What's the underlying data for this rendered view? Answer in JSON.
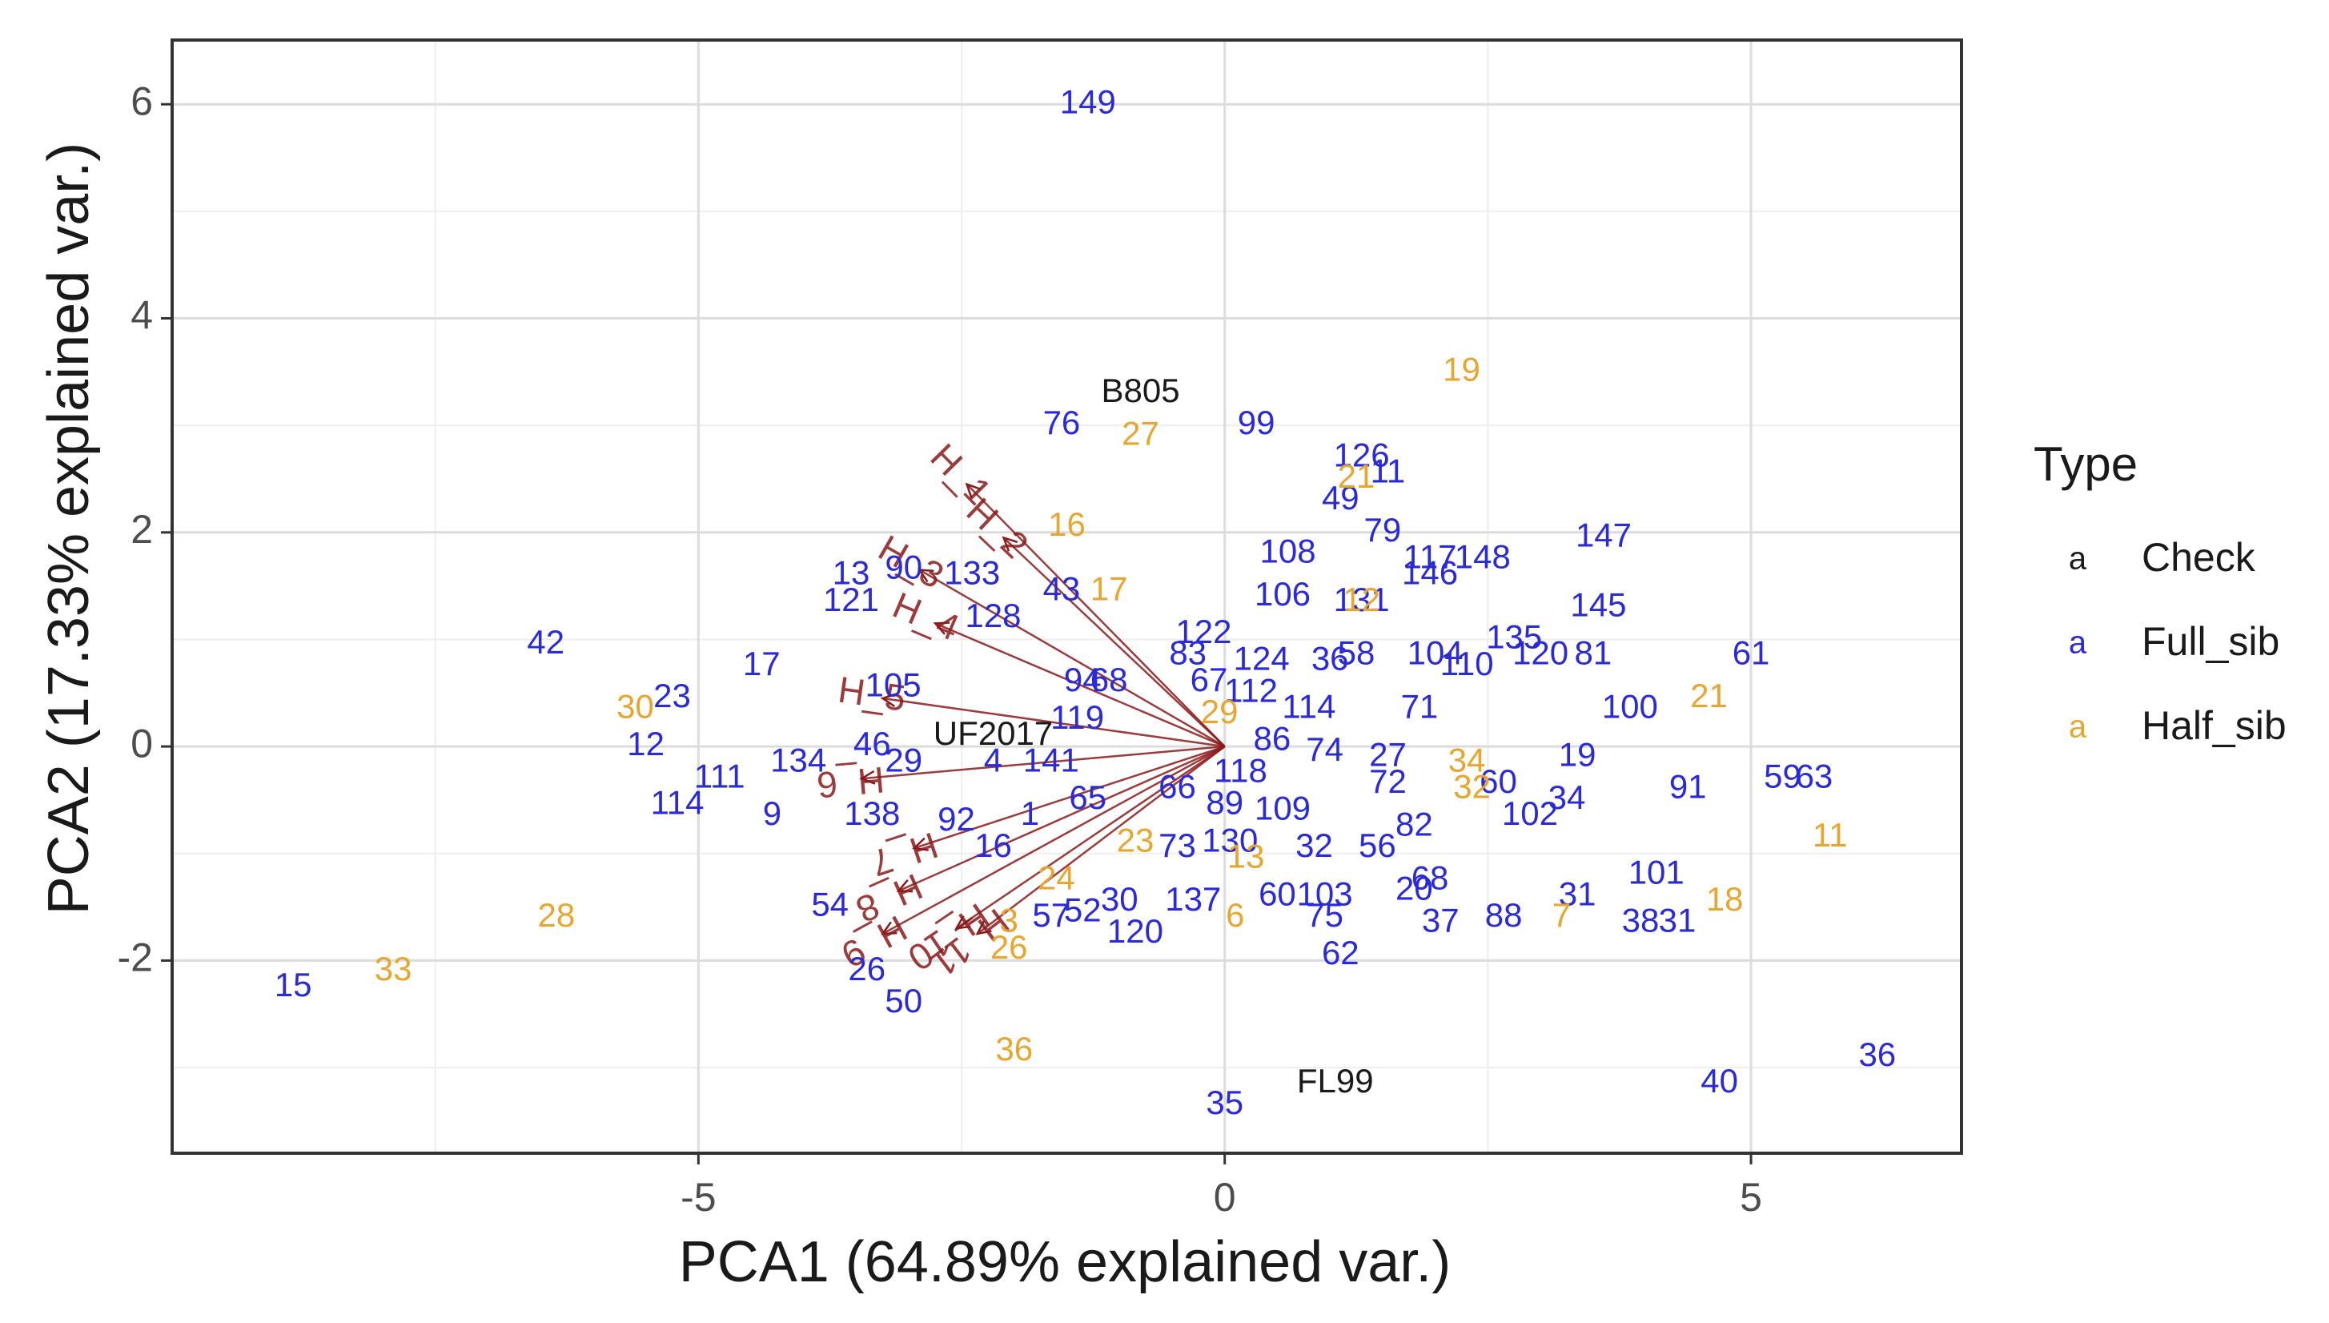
{
  "chart_data": {
    "type": "scatter",
    "title": "",
    "xlabel": "PCA1 (64.89% explained var.)",
    "ylabel": "PCA2 (17.33% explained var.)",
    "xlim": [
      -10,
      7
    ],
    "ylim": [
      -3.8,
      6.6
    ],
    "x_ticks": [
      -5,
      0,
      5
    ],
    "x_tick_labels": [
      "-5",
      "0",
      "5"
    ],
    "y_ticks": [
      -2,
      0,
      2,
      4,
      6
    ],
    "y_tick_labels": [
      "-2",
      "0",
      "2",
      "4",
      "6"
    ],
    "grid": true,
    "legend": {
      "title": "Type",
      "position": "right",
      "key_symbol": "a",
      "entries": [
        {
          "name": "Check",
          "color": "#1a1a1a"
        },
        {
          "name": "Full_sib",
          "color": "#2a2ad8"
        },
        {
          "name": "Half_sib",
          "color": "#e6a630"
        }
      ]
    },
    "vector_color": "#8b1a1a",
    "series": [
      {
        "name": "Check",
        "color": "#1a1a1a",
        "points": [
          {
            "label": "B805",
            "x": -0.8,
            "y": 3.3
          },
          {
            "label": "UF2017",
            "x": -2.2,
            "y": 0.1
          },
          {
            "label": "FL99",
            "x": 1.05,
            "y": -3.15
          }
        ]
      },
      {
        "name": "Full_sib",
        "color": "#2a2ad8",
        "points": [
          {
            "label": "149",
            "x": -1.3,
            "y": 6.0
          },
          {
            "label": "76",
            "x": -1.55,
            "y": 3.0
          },
          {
            "label": "99",
            "x": 0.3,
            "y": 3.0
          },
          {
            "label": "126",
            "x": 1.3,
            "y": 2.7
          },
          {
            "label": "11",
            "x": 1.55,
            "y": 2.55
          },
          {
            "label": "49",
            "x": 1.1,
            "y": 2.3
          },
          {
            "label": "79",
            "x": 1.5,
            "y": 2.0
          },
          {
            "label": "108",
            "x": 0.6,
            "y": 1.8
          },
          {
            "label": "117",
            "x": 1.95,
            "y": 1.75
          },
          {
            "label": "148",
            "x": 2.45,
            "y": 1.75
          },
          {
            "label": "146",
            "x": 1.95,
            "y": 1.6
          },
          {
            "label": "147",
            "x": 3.6,
            "y": 1.95
          },
          {
            "label": "145",
            "x": 3.55,
            "y": 1.3
          },
          {
            "label": "106",
            "x": 0.55,
            "y": 1.4
          },
          {
            "label": "131",
            "x": 1.3,
            "y": 1.35
          },
          {
            "label": "135",
            "x": 2.75,
            "y": 1.0
          },
          {
            "label": "120",
            "x": 3.0,
            "y": 0.85
          },
          {
            "label": "81",
            "x": 3.5,
            "y": 0.85
          },
          {
            "label": "61",
            "x": 5.0,
            "y": 0.85
          },
          {
            "label": "100",
            "x": 3.85,
            "y": 0.35
          },
          {
            "label": "19",
            "x": 3.35,
            "y": -0.1
          },
          {
            "label": "91",
            "x": 4.4,
            "y": -0.4
          },
          {
            "label": "59",
            "x": 5.3,
            "y": -0.3
          },
          {
            "label": "63",
            "x": 5.6,
            "y": -0.3
          },
          {
            "label": "101",
            "x": 4.1,
            "y": -1.2
          },
          {
            "label": "38",
            "x": 3.95,
            "y": -1.65
          },
          {
            "label": "31",
            "x": 4.3,
            "y": -1.65
          },
          {
            "label": "36",
            "x": 6.2,
            "y": -2.9
          },
          {
            "label": "40",
            "x": 4.7,
            "y": -3.15
          },
          {
            "label": "37",
            "x": 2.05,
            "y": -1.65
          },
          {
            "label": "88",
            "x": 2.65,
            "y": -1.6
          },
          {
            "label": "31",
            "x": 3.35,
            "y": -1.4
          },
          {
            "label": "102",
            "x": 2.9,
            "y": -0.65
          },
          {
            "label": "34",
            "x": 3.25,
            "y": -0.5
          },
          {
            "label": "60",
            "x": 2.6,
            "y": -0.35
          },
          {
            "label": "110",
            "x": 2.3,
            "y": 0.75
          },
          {
            "label": "104",
            "x": 2.0,
            "y": 0.85
          },
          {
            "label": "58",
            "x": 1.25,
            "y": 0.85
          },
          {
            "label": "36",
            "x": 1.0,
            "y": 0.8
          },
          {
            "label": "124",
            "x": 0.35,
            "y": 0.8
          },
          {
            "label": "83",
            "x": -0.35,
            "y": 0.85
          },
          {
            "label": "122",
            "x": -0.2,
            "y": 1.05
          },
          {
            "label": "67",
            "x": -0.15,
            "y": 0.6
          },
          {
            "label": "112",
            "x": 0.25,
            "y": 0.5
          },
          {
            "label": "71",
            "x": 1.85,
            "y": 0.35
          },
          {
            "label": "74",
            "x": 0.95,
            "y": -0.05
          },
          {
            "label": "27",
            "x": 1.55,
            "y": -0.1
          },
          {
            "label": "72",
            "x": 1.55,
            "y": -0.35
          },
          {
            "label": "82",
            "x": 1.8,
            "y": -0.75
          },
          {
            "label": "56",
            "x": 1.45,
            "y": -0.95
          },
          {
            "label": "32",
            "x": 0.85,
            "y": -0.95
          },
          {
            "label": "109",
            "x": 0.55,
            "y": -0.6
          },
          {
            "label": "130",
            "x": 0.05,
            "y": -0.9
          },
          {
            "label": "73",
            "x": -0.45,
            "y": -0.95
          },
          {
            "label": "89",
            "x": 0.0,
            "y": -0.55
          },
          {
            "label": "103",
            "x": 0.95,
            "y": -1.4
          },
          {
            "label": "60",
            "x": 0.5,
            "y": -1.4
          },
          {
            "label": "75",
            "x": 0.95,
            "y": -1.6
          },
          {
            "label": "62",
            "x": 1.1,
            "y": -1.95
          },
          {
            "label": "68",
            "x": 1.95,
            "y": -1.25
          },
          {
            "label": "20",
            "x": 1.8,
            "y": -1.35
          },
          {
            "label": "35",
            "x": 0.0,
            "y": -3.35
          },
          {
            "label": "137",
            "x": -0.3,
            "y": -1.45
          },
          {
            "label": "30",
            "x": -1.0,
            "y": -1.45
          },
          {
            "label": "120",
            "x": -0.85,
            "y": -1.75
          },
          {
            "label": "57",
            "x": -1.65,
            "y": -1.6
          },
          {
            "label": "52",
            "x": -1.35,
            "y": -1.55
          },
          {
            "label": "50",
            "x": -3.05,
            "y": -2.4
          },
          {
            "label": "26",
            "x": -3.4,
            "y": -2.1
          },
          {
            "label": "54",
            "x": -3.75,
            "y": -1.5
          },
          {
            "label": "138",
            "x": -3.35,
            "y": -0.65
          },
          {
            "label": "92",
            "x": -2.55,
            "y": -0.7
          },
          {
            "label": "16",
            "x": -2.2,
            "y": -0.95
          },
          {
            "label": "1",
            "x": -1.85,
            "y": -0.65
          },
          {
            "label": "141",
            "x": -1.65,
            "y": -0.15
          },
          {
            "label": "4",
            "x": -2.2,
            "y": -0.15
          },
          {
            "label": "29",
            "x": -3.05,
            "y": -0.15
          },
          {
            "label": "46",
            "x": -3.35,
            "y": 0.0
          },
          {
            "label": "105",
            "x": -3.15,
            "y": 0.55
          },
          {
            "label": "119",
            "x": -1.4,
            "y": 0.25
          },
          {
            "label": "94",
            "x": -1.35,
            "y": 0.6
          },
          {
            "label": "68",
            "x": -1.1,
            "y": 0.6
          },
          {
            "label": "128",
            "x": -2.2,
            "y": 1.2
          },
          {
            "label": "133",
            "x": -2.4,
            "y": 1.6
          },
          {
            "label": "13",
            "x": -3.55,
            "y": 1.6
          },
          {
            "label": "90",
            "x": -3.05,
            "y": 1.65
          },
          {
            "label": "121",
            "x": -3.55,
            "y": 1.35
          },
          {
            "label": "43",
            "x": -1.55,
            "y": 1.45
          },
          {
            "label": "17",
            "x": -4.4,
            "y": 0.75
          },
          {
            "label": "42",
            "x": -6.45,
            "y": 0.95
          },
          {
            "label": "23",
            "x": -5.25,
            "y": 0.45
          },
          {
            "label": "12",
            "x": -5.5,
            "y": 0.0
          },
          {
            "label": "134",
            "x": -4.05,
            "y": -0.15
          },
          {
            "label": "111",
            "x": -4.8,
            "y": -0.3
          },
          {
            "label": "114",
            "x": -5.2,
            "y": -0.55
          },
          {
            "label": "9",
            "x": -4.3,
            "y": -0.65
          },
          {
            "label": "15",
            "x": -8.85,
            "y": -2.25
          },
          {
            "label": "65",
            "x": -1.3,
            "y": -0.5
          },
          {
            "label": "66",
            "x": -0.45,
            "y": -0.4
          },
          {
            "label": "114",
            "x": 0.8,
            "y": 0.35
          },
          {
            "label": "86",
            "x": 0.45,
            "y": 0.05
          },
          {
            "label": "118",
            "x": 0.15,
            "y": -0.25
          }
        ]
      },
      {
        "name": "Half_sib",
        "color": "#e6a630",
        "points": [
          {
            "label": "19",
            "x": 2.25,
            "y": 3.5
          },
          {
            "label": "27",
            "x": -0.8,
            "y": 2.9
          },
          {
            "label": "16",
            "x": -1.5,
            "y": 2.05
          },
          {
            "label": "17",
            "x": -1.1,
            "y": 1.45
          },
          {
            "label": "21",
            "x": 4.6,
            "y": 0.45
          },
          {
            "label": "11",
            "x": 5.75,
            "y": -0.85
          },
          {
            "label": "18",
            "x": 4.75,
            "y": -1.45
          },
          {
            "label": "7",
            "x": 3.2,
            "y": -1.6
          },
          {
            "label": "34",
            "x": 2.3,
            "y": -0.15
          },
          {
            "label": "32",
            "x": 2.35,
            "y": -0.4
          },
          {
            "label": "30",
            "x": -5.6,
            "y": 0.35
          },
          {
            "label": "28",
            "x": -6.35,
            "y": -1.6
          },
          {
            "label": "33",
            "x": -7.9,
            "y": -2.1
          },
          {
            "label": "36",
            "x": -2.0,
            "y": -2.85
          },
          {
            "label": "26",
            "x": -2.05,
            "y": -1.9
          },
          {
            "label": "24",
            "x": -1.6,
            "y": -1.25
          },
          {
            "label": "23",
            "x": -0.85,
            "y": -0.9
          },
          {
            "label": "13",
            "x": 0.2,
            "y": -1.05
          },
          {
            "label": "6",
            "x": 0.1,
            "y": -1.6
          },
          {
            "label": "3",
            "x": -2.05,
            "y": -1.65
          },
          {
            "label": "29",
            "x": -0.05,
            "y": 0.3
          },
          {
            "label": "12",
            "x": 1.3,
            "y": 1.35
          },
          {
            "label": "21",
            "x": 1.25,
            "y": 2.5
          }
        ]
      }
    ],
    "loadings": [
      {
        "label": "H_1",
        "x": -2.45,
        "y": 2.45
      },
      {
        "label": "H_2",
        "x": -2.1,
        "y": 1.95
      },
      {
        "label": "H_3",
        "x": -2.9,
        "y": 1.65
      },
      {
        "label": "H_4",
        "x": -2.75,
        "y": 1.15
      },
      {
        "label": "H_5",
        "x": -3.25,
        "y": 0.45
      },
      {
        "label": "H_6",
        "x": -3.45,
        "y": -0.3
      },
      {
        "label": "H_7",
        "x": -2.95,
        "y": -0.95
      },
      {
        "label": "H_8",
        "x": -3.1,
        "y": -1.35
      },
      {
        "label": "H_9",
        "x": -3.25,
        "y": -1.75
      },
      {
        "label": "H_10",
        "x": -2.55,
        "y": -1.7
      },
      {
        "label": "H_11",
        "x": -2.35,
        "y": -1.75
      }
    ]
  }
}
